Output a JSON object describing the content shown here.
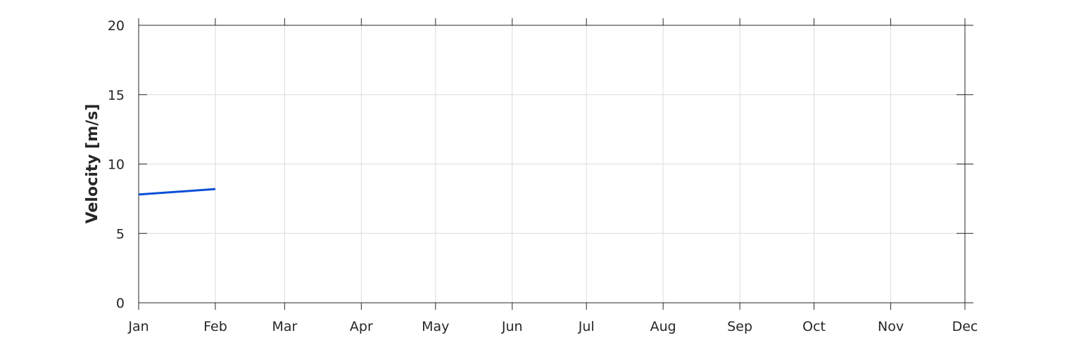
{
  "chart_data": {
    "type": "line",
    "title": "",
    "xlabel": "",
    "ylabel": "Velocity [m/s]",
    "x_tick_labels": [
      "Jan",
      "Feb",
      "Mar",
      "Apr",
      "May",
      "Jun",
      "Jul",
      "Aug",
      "Sep",
      "Oct",
      "Nov",
      "Dec"
    ],
    "y_ticks": [
      0,
      5,
      10,
      15,
      20
    ],
    "ylim": [
      0,
      20
    ],
    "grid": true,
    "series": [
      {
        "color": "#0a4fd6",
        "x": [
          "Jan",
          "Feb"
        ],
        "y": [
          7.8,
          8.2
        ]
      }
    ]
  }
}
